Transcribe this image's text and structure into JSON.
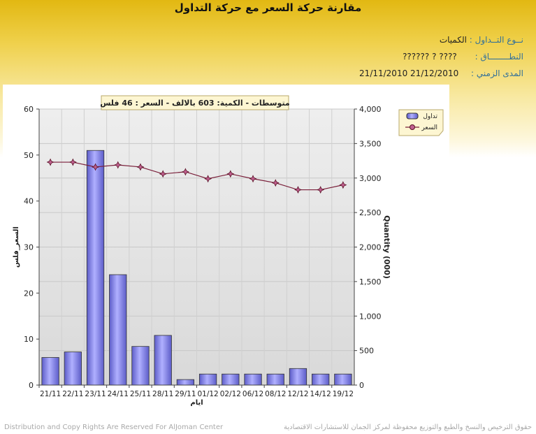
{
  "header": {
    "title": "مقارنة حركة السعر مع حركة التداول",
    "type_label": "نــوع التــداول :",
    "type_value": "الكميات",
    "range_label": "النطــــــــاق :",
    "range_value": "????  ? ??????",
    "period_label": "المدى الزمني :",
    "period_value": "21/12/2010 21/11/2010"
  },
  "footer": {
    "left": "Distribution and Copy Rights Are Reserved For AlJoman Center",
    "right": "حقوق الترخيص والنسخ والطبع والتوزيع محفوظة لمركز الجمان للاستشارات الاقتصادية"
  },
  "chart_data": {
    "type": "bar",
    "title": "متوسطات - الكمية: 603 بالالف  - السعر : 46 فلس",
    "xlabel": "ايام",
    "ylabel_left": "السعر_فلس",
    "ylabel_right": "Quantity (000)",
    "categories": [
      "21/11",
      "22/11",
      "23/11",
      "24/11",
      "25/11",
      "28/11",
      "29/11",
      "01/12",
      "02/12",
      "06/12",
      "08/12",
      "12/12",
      "14/12",
      "19/12"
    ],
    "ylim_left": [
      0,
      60
    ],
    "ylim_right": [
      0,
      4000
    ],
    "yticks_left": [
      "0",
      "10",
      "20",
      "30",
      "40",
      "50",
      "60"
    ],
    "yticks_right": [
      "0",
      "500",
      "1,000",
      "1,500",
      "2,000",
      "2,500",
      "3,000",
      "3,500",
      "4,000"
    ],
    "legend_position": "top-right",
    "grid": true,
    "series": [
      {
        "name": "تداول",
        "type": "bar",
        "axis": "left",
        "color": "#7b7be0",
        "values": [
          6,
          7.2,
          51,
          24,
          8.4,
          10.8,
          1.2,
          2.4,
          2.4,
          2.4,
          2.4,
          3.6,
          2.4,
          2.4
        ]
      },
      {
        "name": "السعر",
        "type": "line",
        "axis": "right",
        "color": "#7a1f3a",
        "values": [
          3230,
          3230,
          3160,
          3190,
          3160,
          3060,
          3090,
          2990,
          3060,
          2990,
          2930,
          2830,
          2830,
          2900
        ]
      }
    ]
  }
}
